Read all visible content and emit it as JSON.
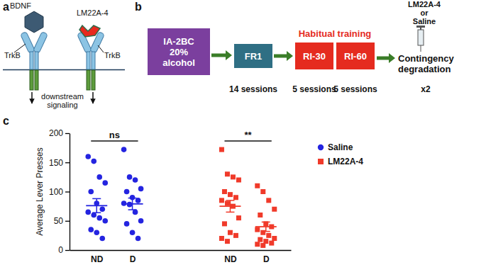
{
  "panels": {
    "a": {
      "label": "a",
      "ligand": "BDNF",
      "drug": "LM22A-4",
      "receptor_left": "TrkB",
      "receptor_right": "TrkB",
      "output": [
        "downstream",
        "signaling"
      ]
    },
    "b": {
      "label": "b",
      "boxes": [
        {
          "lines": [
            "IA-2BC",
            "20%",
            "alcohol"
          ],
          "color": "#7b3f9e"
        },
        {
          "lines": [
            "FR1"
          ],
          "color": "#2f6f84"
        },
        {
          "lines": [
            "RI-30"
          ],
          "color": "#e52b1f"
        },
        {
          "lines": [
            "RI-60"
          ],
          "color": "#e52b1f"
        }
      ],
      "bracket_label": "Habitual training",
      "sessions": [
        "14 sessions",
        "5 sessions",
        "5 sessions",
        "x2"
      ],
      "injection": [
        "LM22A-4",
        "or",
        "Saline"
      ],
      "final": [
        "Contingency",
        "degradation"
      ]
    }
  },
  "chart_data": {
    "type": "strip",
    "panel_label": "c",
    "y_label": "Average Lever Presses",
    "categories": [
      "ND",
      "D",
      "ND",
      "D"
    ],
    "ylim": [
      0,
      200
    ],
    "yticks": [
      0,
      50,
      100,
      150,
      200
    ],
    "legend": "upper right",
    "series": [
      {
        "name": "Saline",
        "color": "#2424e0",
        "marker": "circle",
        "values": [
          [
            160,
            152,
            125,
            115,
            100,
            80,
            70,
            65,
            60,
            55,
            50,
            35,
            30,
            20
          ],
          [
            172,
            125,
            120,
            105,
            100,
            90,
            85,
            80,
            78,
            65,
            50,
            45,
            30,
            20
          ],
          null,
          null
        ],
        "mean": [
          76,
          79,
          null,
          null
        ],
        "error": [
          12,
          10,
          null,
          null
        ]
      },
      {
        "name": "LM22A-4",
        "color": "#f03a2a",
        "marker": "square",
        "values": [
          null,
          null,
          [
            172,
            130,
            125,
            120,
            100,
            95,
            90,
            85,
            80,
            75,
            55,
            45,
            30,
            25,
            20,
            15
          ],
          [
            110,
            100,
            85,
            70,
            60,
            45,
            40,
            35,
            30,
            25,
            20,
            18,
            15,
            12,
            10,
            8
          ]
        ],
        "mean": [
          null,
          null,
          75,
          40
        ],
        "error": [
          null,
          null,
          10,
          8
        ]
      }
    ],
    "annotations": [
      {
        "text": "ns",
        "categories": [
          0,
          1
        ]
      },
      {
        "text": "**",
        "categories": [
          2,
          3
        ]
      }
    ]
  }
}
